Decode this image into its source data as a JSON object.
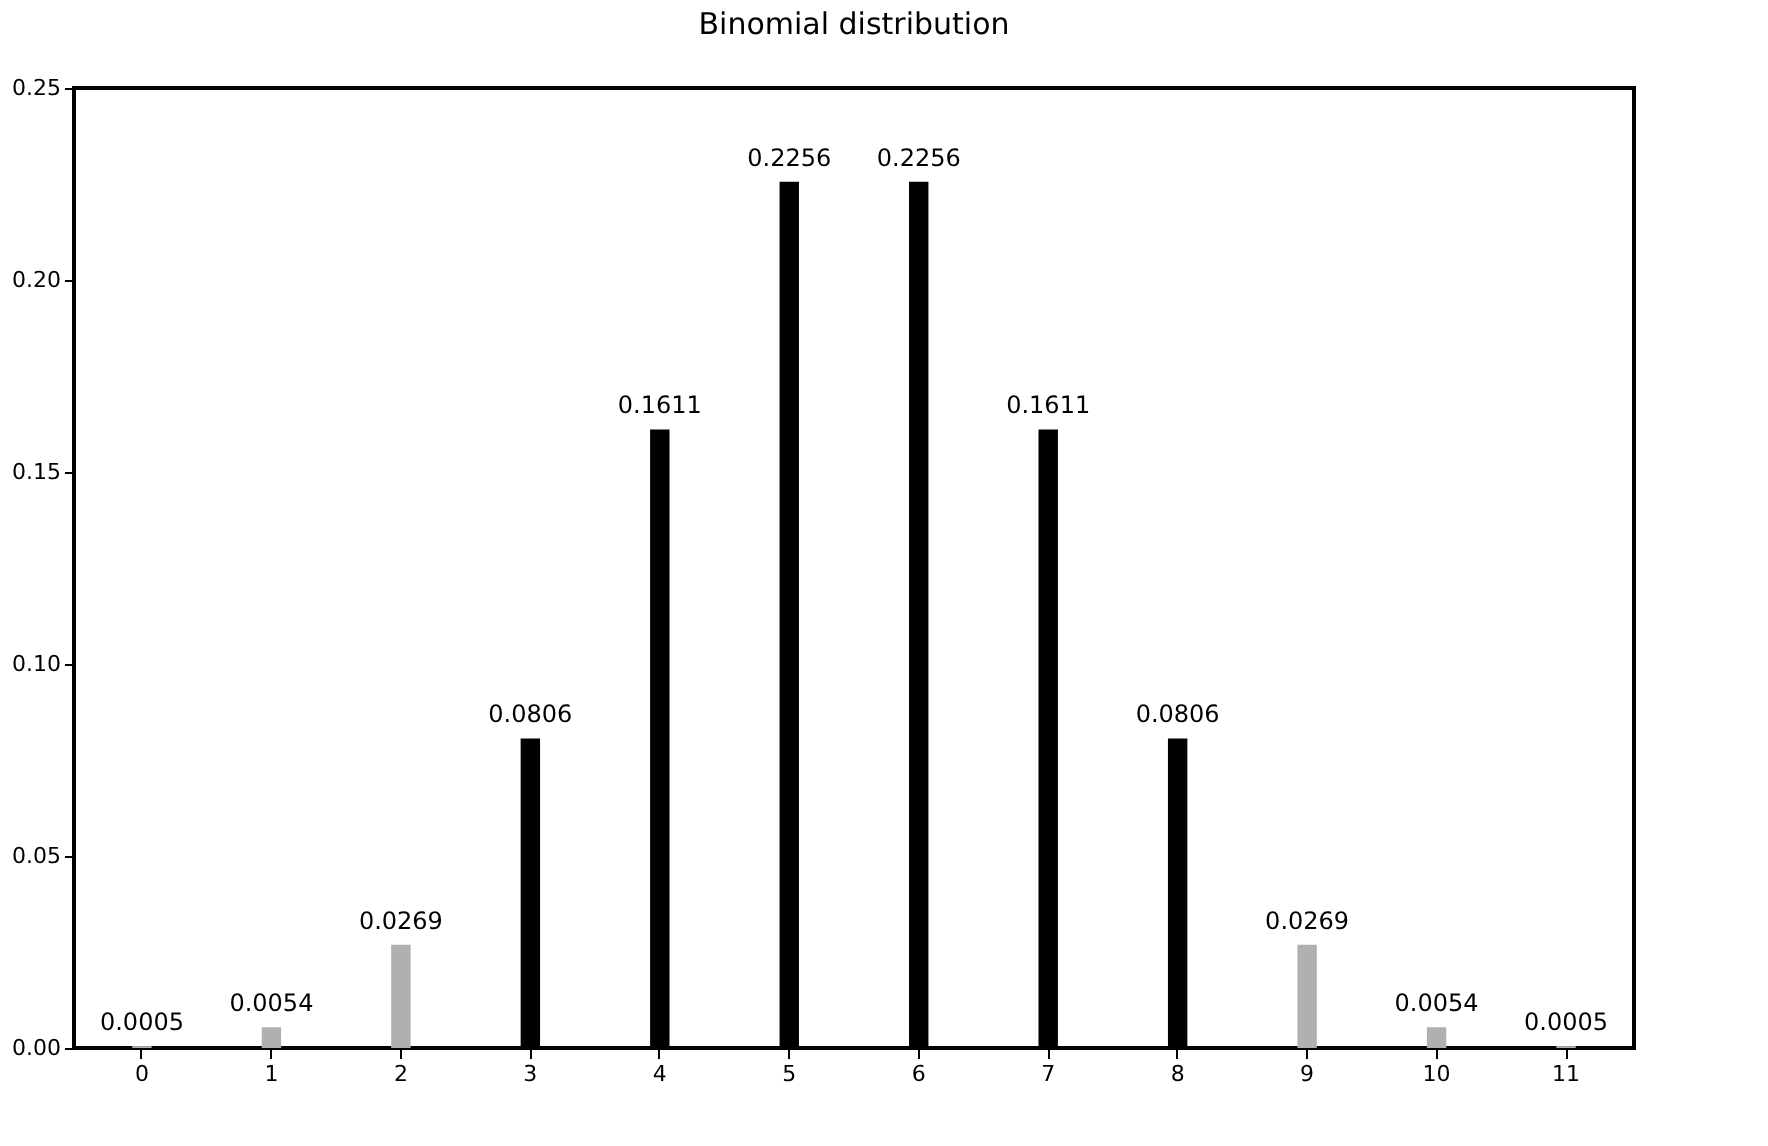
{
  "chart_data": {
    "type": "bar",
    "title": "Binomial distribution",
    "categories": [
      "0",
      "1",
      "2",
      "3",
      "4",
      "5",
      "6",
      "7",
      "8",
      "9",
      "10",
      "11"
    ],
    "values": [
      0.0005,
      0.0054,
      0.0269,
      0.0806,
      0.1611,
      0.2256,
      0.2256,
      0.1611,
      0.0806,
      0.0269,
      0.0054,
      0.0005
    ],
    "colors": [
      "#b0b0b0",
      "#b0b0b0",
      "#b0b0b0",
      "#000000",
      "#000000",
      "#000000",
      "#000000",
      "#000000",
      "#000000",
      "#b0b0b0",
      "#b0b0b0",
      "#b0b0b0"
    ],
    "ylim": [
      0,
      0.25
    ],
    "yticks": [
      {
        "value": 0,
        "label": "0.00"
      },
      {
        "value": 0.05,
        "label": "0.05"
      },
      {
        "value": 0.1,
        "label": "0.10"
      },
      {
        "value": 0.15,
        "label": "0.15"
      },
      {
        "value": 0.2,
        "label": "0.20"
      },
      {
        "value": 0.25,
        "label": "0.25"
      }
    ],
    "data_labels": true,
    "grid": false
  }
}
